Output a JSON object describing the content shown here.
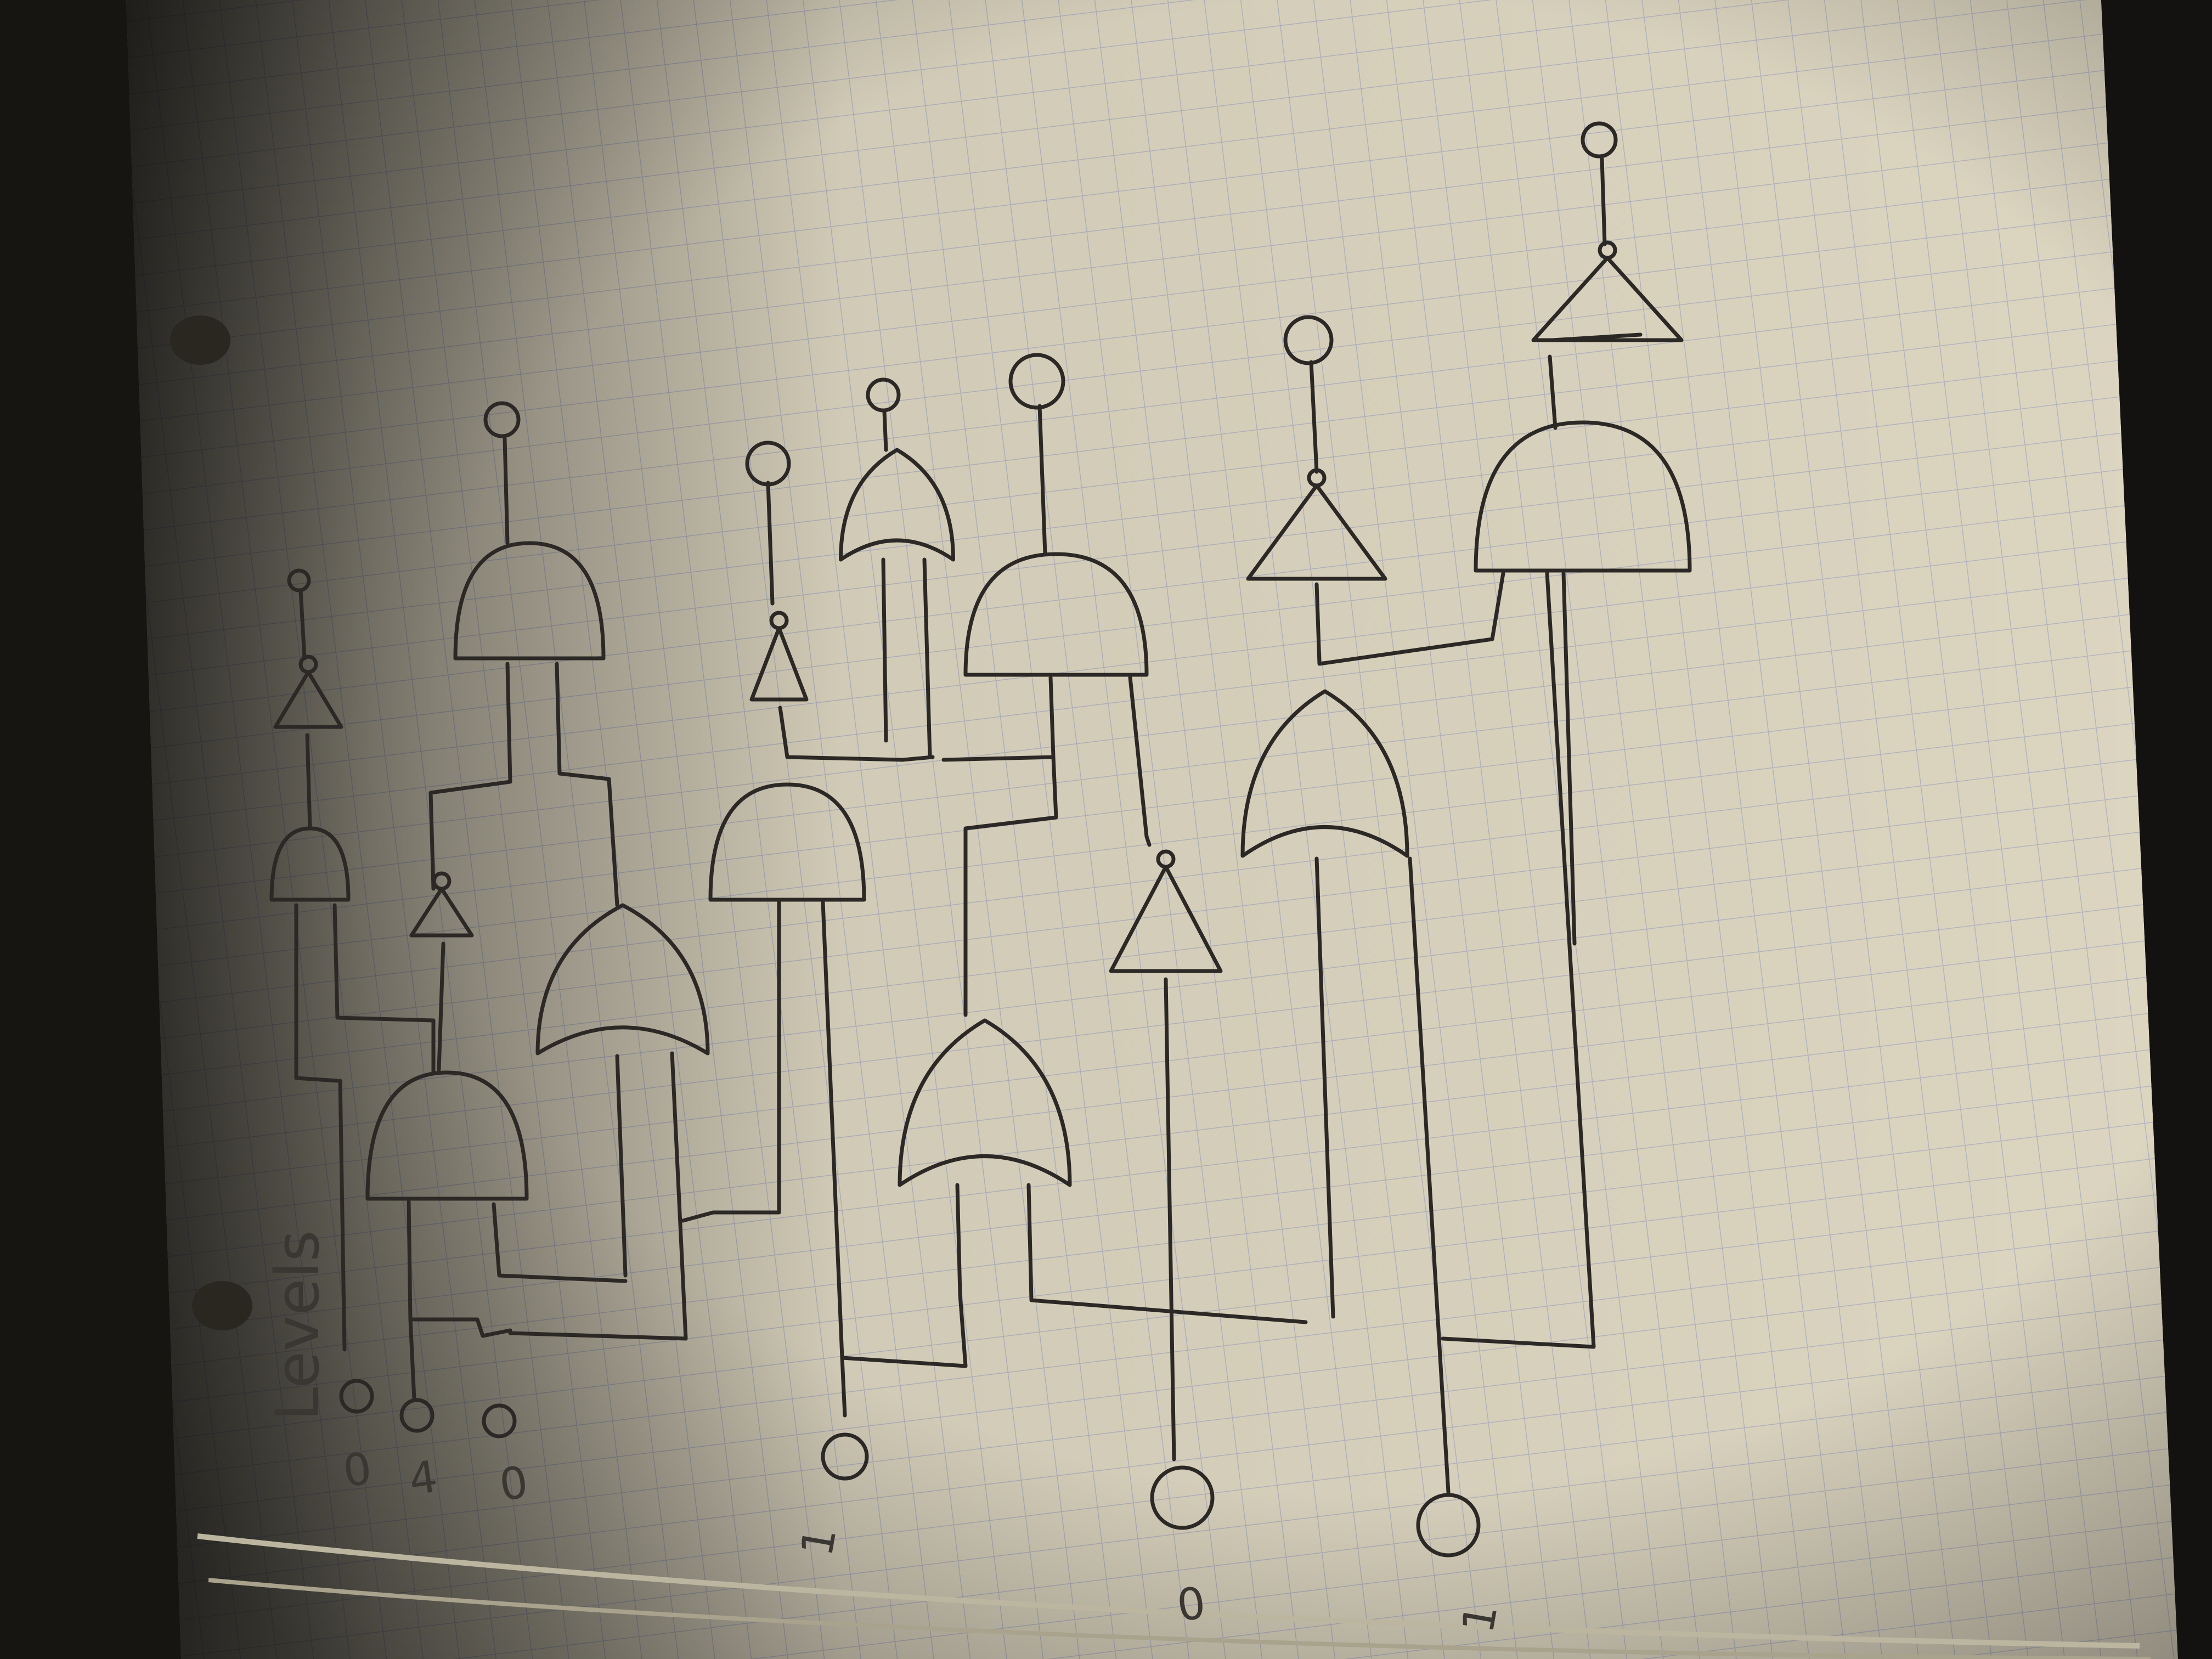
{
  "sheet": {
    "side_label": "Levels",
    "input_values": [
      "0",
      "4",
      "0",
      "1",
      "0",
      "1"
    ]
  },
  "colors": {
    "paper": "#d9d2bd",
    "grid": "#9aa0c0",
    "ink": "#2b2825",
    "shadow": "#141210"
  },
  "gates": [
    {
      "type": "and-gate"
    },
    {
      "type": "not-gate"
    },
    {
      "type": "and-gate"
    },
    {
      "type": "or-gate"
    },
    {
      "type": "and-gate"
    },
    {
      "type": "not-gate"
    },
    {
      "type": "or-gate"
    },
    {
      "type": "and-gate"
    },
    {
      "type": "or-gate"
    },
    {
      "type": "or-gate"
    },
    {
      "type": "not-gate"
    },
    {
      "type": "and-gate"
    },
    {
      "type": "or-gate"
    },
    {
      "type": "not-gate"
    },
    {
      "type": "and-gate"
    },
    {
      "type": "not-gate"
    },
    {
      "type": "or-gate"
    },
    {
      "type": "not-gate"
    }
  ]
}
